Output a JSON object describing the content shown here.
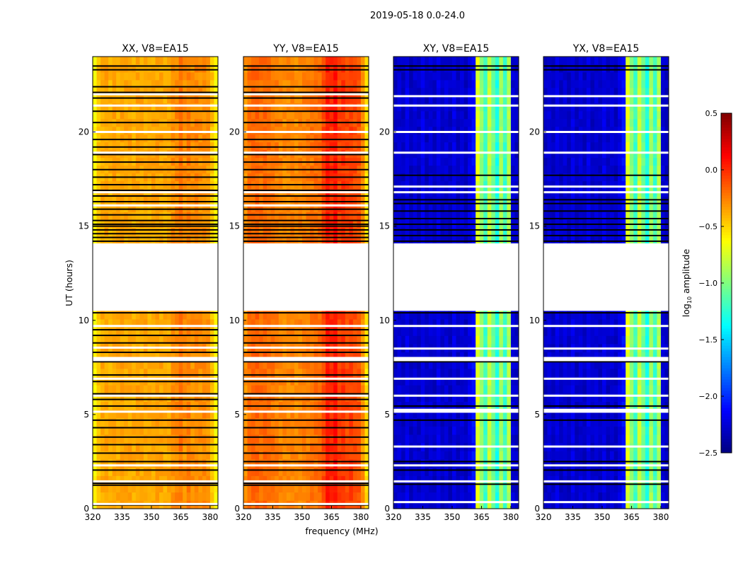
{
  "chart_data": {
    "type": "heatmap",
    "title": "2019-05-18 0.0-24.0",
    "xlabel": "frequency (MHz)",
    "ylabel": "UT (hours)",
    "xlim": [
      320,
      384
    ],
    "ylim": [
      0,
      24
    ],
    "xticks": [
      320,
      335,
      350,
      365,
      380
    ],
    "yticks": [
      0,
      5,
      10,
      15,
      20
    ],
    "flagged_gap_hours": [
      10.5,
      14.1
    ],
    "colorbar": {
      "label_main": "log",
      "label_sub": "10",
      "label_rest": " amplitude",
      "colormap": "jet",
      "range": [
        -2.5,
        0.5
      ],
      "ticks": [
        "0.5",
        "0.0",
        "−0.5",
        "−1.0",
        "−1.5",
        "−2.0",
        "−2.5"
      ],
      "tick_values": [
        0.5,
        0.0,
        -0.5,
        -1.0,
        -1.5,
        -2.0,
        -2.5
      ]
    },
    "channel_freqs_start": 320,
    "channel_width_mhz": 2,
    "panels": [
      {
        "title": "XX, V8=EA15",
        "log_amplitude_by_channel": [
          -0.62,
          -0.45,
          -0.38,
          -0.36,
          -0.4,
          -0.36,
          -0.38,
          -0.35,
          -0.37,
          -0.36,
          -0.38,
          -0.36,
          -0.37,
          -0.36,
          -0.38,
          -0.37,
          -0.36,
          -0.36,
          -0.38,
          -0.37,
          -0.3,
          -0.28,
          -0.22,
          -0.3,
          -0.25,
          -0.3,
          -0.27,
          -0.3,
          -0.28,
          -0.32,
          -0.45,
          -0.62
        ],
        "black_flag_hours": [
          0.2,
          1.25,
          1.35,
          2.05,
          2.5,
          2.95,
          3.4,
          3.8,
          4.3,
          4.7,
          5.45,
          5.8,
          6.1,
          6.75,
          7.1,
          7.8,
          8.3,
          8.8,
          9.2,
          9.5,
          10.4,
          14.2,
          14.4,
          14.6,
          14.8,
          15.0,
          15.1,
          15.3,
          15.6,
          15.9,
          16.3,
          16.6,
          16.9,
          17.2,
          17.6,
          18.0,
          18.4,
          18.8,
          19.2,
          19.6,
          20.5,
          21.1,
          21.8,
          22.1,
          22.4,
          23.3,
          23.5
        ],
        "white_flag_hours": [
          0.25,
          1.45,
          2.3,
          5.15,
          6.0,
          6.9,
          8.0,
          8.55,
          9.7,
          16.1,
          16.8,
          18.9,
          20.0,
          21.4,
          22.0
        ]
      },
      {
        "title": "YY, V8=EA15",
        "log_amplitude_by_channel": [
          -0.3,
          -0.2,
          -0.18,
          -0.17,
          -0.2,
          -0.17,
          -0.2,
          -0.22,
          -0.25,
          -0.27,
          -0.28,
          -0.28,
          -0.27,
          -0.28,
          -0.27,
          -0.25,
          -0.24,
          -0.22,
          -0.2,
          -0.18,
          -0.08,
          0.05,
          0.0,
          0.08,
          -0.05,
          -0.02,
          -0.08,
          -0.05,
          -0.1,
          -0.12,
          -0.3,
          -0.55
        ],
        "black_flag_hours": [
          0.2,
          1.25,
          1.35,
          2.05,
          2.5,
          2.95,
          3.4,
          3.8,
          4.3,
          4.7,
          5.45,
          5.8,
          6.1,
          6.75,
          7.1,
          7.8,
          8.3,
          8.8,
          9.2,
          9.5,
          10.4,
          14.2,
          14.4,
          14.6,
          14.8,
          15.0,
          15.1,
          15.3,
          15.6,
          15.9,
          16.3,
          16.6,
          16.9,
          17.2,
          17.6,
          18.0,
          18.4,
          18.8,
          19.2,
          19.6,
          20.5,
          21.1,
          21.8,
          22.1,
          22.4,
          23.3,
          23.5
        ],
        "white_flag_hours": [
          0.25,
          1.45,
          2.3,
          5.15,
          6.0,
          6.9,
          8.0,
          8.55,
          9.7,
          16.1,
          16.8,
          18.9,
          20.0,
          21.4,
          22.0
        ]
      },
      {
        "title": "XY, V8=EA15",
        "log_amplitude_by_channel": [
          -2.3,
          -2.25,
          -2.3,
          -2.2,
          -2.3,
          -2.25,
          -2.3,
          -2.2,
          -2.3,
          -2.25,
          -2.3,
          -2.2,
          -2.3,
          -2.25,
          -2.3,
          -2.2,
          -2.3,
          -2.25,
          -2.3,
          -2.2,
          -2.1,
          -0.7,
          -0.95,
          -1.2,
          -0.8,
          -1.05,
          -1.3,
          -0.9,
          -1.2,
          -0.85,
          -2.25,
          -2.3
        ],
        "black_flag_hours": [
          1.3,
          2.05,
          2.5,
          4.7,
          5.45,
          7.8,
          10.4,
          14.2,
          14.5,
          14.8,
          15.1,
          15.4,
          15.8,
          16.2,
          16.4,
          17.7,
          23.3,
          23.5
        ],
        "white_flag_hours": [
          0.35,
          1.45,
          2.3,
          3.3,
          5.15,
          5.25,
          6.0,
          6.9,
          8.0,
          8.5,
          9.7,
          16.8,
          17.1,
          18.9,
          20.0,
          21.4,
          21.9
        ]
      },
      {
        "title": "YX, V8=EA15",
        "log_amplitude_by_channel": [
          -2.3,
          -2.25,
          -2.3,
          -2.2,
          -2.3,
          -2.25,
          -2.3,
          -2.2,
          -2.3,
          -2.25,
          -2.3,
          -2.2,
          -2.3,
          -2.25,
          -2.3,
          -2.2,
          -2.3,
          -2.25,
          -2.3,
          -2.2,
          -2.1,
          -0.7,
          -0.95,
          -1.2,
          -0.8,
          -1.05,
          -1.3,
          -0.9,
          -1.2,
          -0.85,
          -2.25,
          -2.3
        ],
        "black_flag_hours": [
          1.3,
          2.05,
          2.5,
          4.7,
          5.45,
          7.8,
          10.4,
          14.2,
          14.5,
          14.8,
          15.1,
          15.4,
          15.8,
          16.2,
          16.4,
          17.7,
          23.3,
          23.5
        ],
        "white_flag_hours": [
          0.35,
          1.45,
          2.3,
          3.3,
          5.15,
          5.25,
          6.0,
          6.9,
          8.0,
          8.5,
          9.7,
          16.8,
          17.1,
          18.9,
          20.0,
          21.4,
          21.9
        ]
      }
    ]
  }
}
